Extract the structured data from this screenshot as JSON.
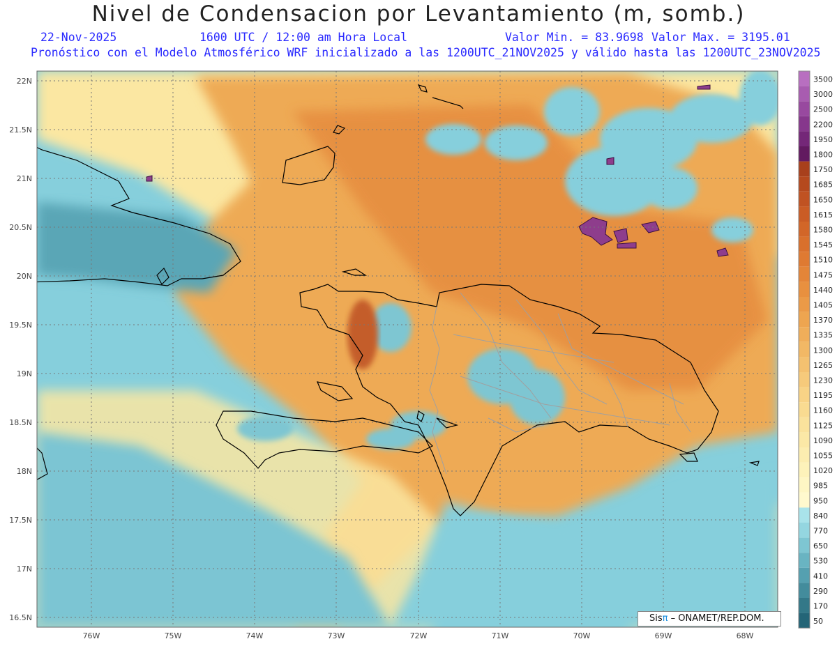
{
  "title": "Nivel de Condensacion por Levantamiento (m, somb.)",
  "date": "22-Nov-2025",
  "time": "1600 UTC / 12:00 am Hora Local",
  "valor_min": "Valor Min. = 83.9698",
  "valor_max": "Valor Max. = 3195.01",
  "subtitle": "Pronóstico con el Modelo Atmosférico WRF inicializado a las 1200UTC_21NOV2025 y válido hasta las  1200UTC_23NOV2025",
  "logo": {
    "sis": "Sis",
    "pi": "π",
    "rest": "– ONAMET/REP.DOM."
  },
  "lat_labels": [
    "22N",
    "21.5N",
    "21N",
    "20.5N",
    "20N",
    "19.5N",
    "19N",
    "18.5N",
    "18N",
    "17.5N",
    "17N",
    "16.5N"
  ],
  "lon_labels": [
    "76W",
    "75W",
    "74W",
    "73W",
    "72W",
    "71W",
    "70W",
    "69W",
    "68W"
  ],
  "colorbar": {
    "labels": [
      "3500",
      "3000",
      "2500",
      "2200",
      "1950",
      "1800",
      "1750",
      "1685",
      "1650",
      "1615",
      "1580",
      "1545",
      "1510",
      "1475",
      "1440",
      "1405",
      "1370",
      "1335",
      "1300",
      "1265",
      "1230",
      "1195",
      "1160",
      "1125",
      "1090",
      "1055",
      "1020",
      "985",
      "950",
      "840",
      "770",
      "650",
      "530",
      "410",
      "290",
      "170",
      "50"
    ],
    "colors": [
      "#b86fc0",
      "#a85cb0",
      "#98499f",
      "#86378c",
      "#742778",
      "#621a60",
      "#a8401c",
      "#b5491e",
      "#c05222",
      "#ca5c25",
      "#d26628",
      "#d9702c",
      "#df7a32",
      "#e48538",
      "#e8903f",
      "#eb9a47",
      "#eea550",
      "#f0ae5a",
      "#f2b865",
      "#f4c170",
      "#f6ca7b",
      "#f8d386",
      "#f9db91",
      "#fae29c",
      "#fbe8a6",
      "#fcedb0",
      "#fdf2ba",
      "#fef6c4",
      "#fff9ce",
      "#a9e3ea",
      "#94d6e0",
      "#7ec6d2",
      "#69b4c2",
      "#55a0b0",
      "#438c9c",
      "#337888",
      "#246577"
    ]
  },
  "colors": {
    "ocean_blue": "#86cfdc",
    "deep_blue": "#5aa6b6",
    "yellow": "#fbe7a2",
    "orange": "#eea24a",
    "purple": "#8e3d8c",
    "coast": "#000000",
    "border": "#a0a0a0"
  }
}
